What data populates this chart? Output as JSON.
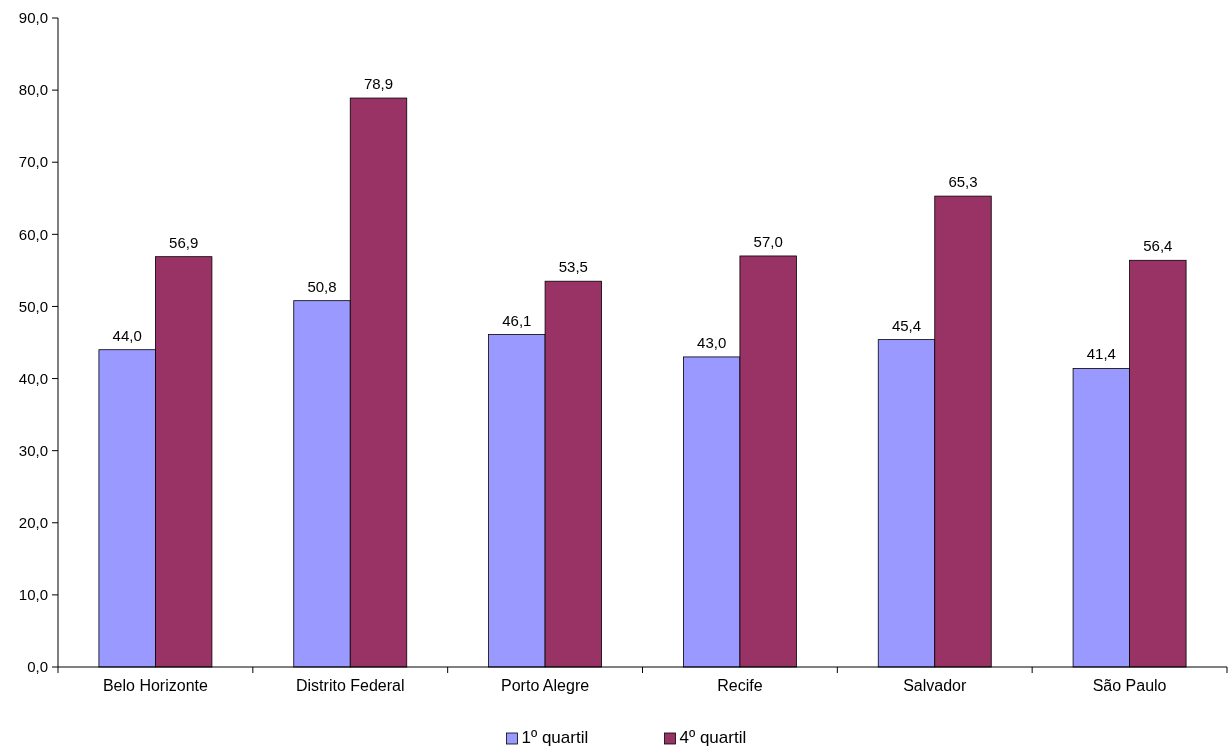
{
  "chart_data": {
    "type": "bar",
    "categories": [
      "Belo Horizonte",
      "Distrito Federal",
      "Porto Alegre",
      "Recife",
      "Salvador",
      "São Paulo"
    ],
    "series": [
      {
        "name": "1º quartil",
        "color": "#9999ff",
        "values": [
          44.0,
          50.8,
          46.1,
          43.0,
          45.4,
          41.4
        ],
        "value_labels": [
          "44,0",
          "50,8",
          "46,1",
          "43,0",
          "45,4",
          "41,4"
        ]
      },
      {
        "name": "4º quartil",
        "color": "#993366",
        "values": [
          56.9,
          78.9,
          53.5,
          57.0,
          65.3,
          56.4
        ],
        "value_labels": [
          "56,9",
          "78,9",
          "53,5",
          "57,0",
          "65,3",
          "56,4"
        ]
      }
    ],
    "ylim": [
      0,
      90
    ],
    "yticks": [
      {
        "value": 0,
        "label": "0,0"
      },
      {
        "value": 10,
        "label": "10,0"
      },
      {
        "value": 20,
        "label": "20,0"
      },
      {
        "value": 30,
        "label": "30,0"
      },
      {
        "value": 40,
        "label": "40,0"
      },
      {
        "value": 50,
        "label": "50,0"
      },
      {
        "value": 60,
        "label": "60,0"
      },
      {
        "value": 70,
        "label": "70,0"
      },
      {
        "value": 80,
        "label": "80,0"
      },
      {
        "value": 90,
        "label": "90,0"
      }
    ],
    "grid": false,
    "legend": "bottom"
  }
}
